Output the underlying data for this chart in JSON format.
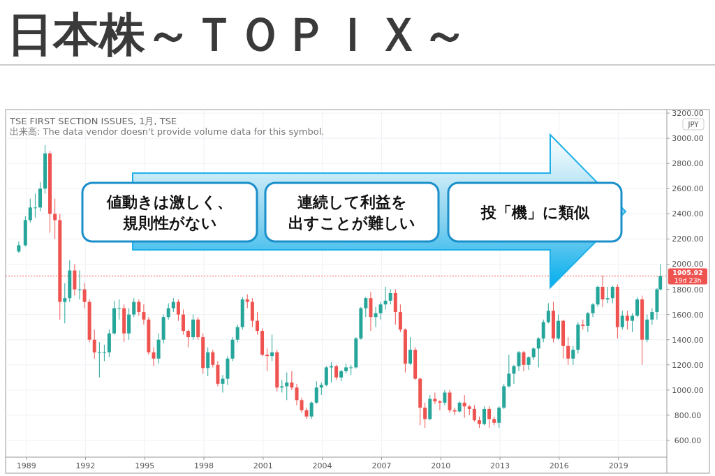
{
  "chart_data": {
    "type": "candlestick",
    "title": "日本株～ＴＯＰＩＸ～",
    "annotations": [
      "TSE FIRST SECTION ISSUES, 1月, TSE",
      "出来高: The data vendor doesn't provide volume data for this symbol.",
      "値動きは激しく、",
      "規則性がない",
      "連続して利益を",
      "出すことが難しい",
      "投「機」に類似",
      "JPY",
      "19d 23h"
    ],
    "x": [
      "1988-08",
      "1988-12",
      "1989-03",
      "1989-06",
      "1989-09",
      "1989-12",
      "1990-03",
      "1990-06",
      "1990-09",
      "1990-12",
      "1991-03",
      "1991-06",
      "1991-09",
      "1991-12",
      "1992-03",
      "1992-06",
      "1992-09",
      "1992-12",
      "1993-03",
      "1993-06",
      "1993-09",
      "1993-12",
      "1994-03",
      "1994-06",
      "1994-09",
      "1994-12",
      "1995-03",
      "1995-06",
      "1995-09",
      "1995-12",
      "1996-03",
      "1996-06",
      "1996-09",
      "1996-12",
      "1997-03",
      "1997-06",
      "1997-09",
      "1997-12",
      "1998-03",
      "1998-06",
      "1998-09",
      "1998-12",
      "1999-03",
      "1999-06",
      "1999-09",
      "1999-12",
      "2000-03",
      "2000-06",
      "2000-09",
      "2000-12",
      "2001-03",
      "2001-06",
      "2001-09",
      "2001-12",
      "2002-03",
      "2002-06",
      "2002-09",
      "2002-12",
      "2003-03",
      "2003-06",
      "2003-09",
      "2003-12",
      "2004-03",
      "2004-06",
      "2004-09",
      "2004-12",
      "2005-03",
      "2005-06",
      "2005-09",
      "2005-12",
      "2006-03",
      "2006-06",
      "2006-09",
      "2006-12",
      "2007-03",
      "2007-06",
      "2007-09",
      "2007-12",
      "2008-03",
      "2008-06",
      "2008-09",
      "2008-12",
      "2009-03",
      "2009-06",
      "2009-09",
      "2009-12",
      "2010-03",
      "2010-06",
      "2010-09",
      "2010-12",
      "2011-03",
      "2011-06",
      "2011-09",
      "2011-12",
      "2012-03",
      "2012-06",
      "2012-09",
      "2012-12",
      "2013-03",
      "2013-06",
      "2013-09",
      "2013-12",
      "2014-03",
      "2014-06",
      "2014-09",
      "2014-12",
      "2015-03",
      "2015-06",
      "2015-09",
      "2015-12",
      "2016-03",
      "2016-06",
      "2016-09",
      "2016-12",
      "2017-03",
      "2017-06",
      "2017-09",
      "2017-12",
      "2018-03",
      "2018-06",
      "2018-09",
      "2018-12",
      "2019-03",
      "2019-06",
      "2019-09",
      "2019-12",
      "2020-03",
      "2020-06",
      "2020-09",
      "2020-12",
      "2021-02"
    ],
    "ohlc": [
      [
        2100,
        2180,
        2090,
        2150
      ],
      [
        2150,
        2380,
        2140,
        2350
      ],
      [
        2350,
        2520,
        2330,
        2450
      ],
      [
        2450,
        2560,
        2370,
        2450
      ],
      [
        2450,
        2650,
        2420,
        2600
      ],
      [
        2600,
        2945,
        2560,
        2880
      ],
      [
        2880,
        2900,
        2250,
        2400
      ],
      [
        2400,
        2520,
        2200,
        2350
      ],
      [
        2350,
        2400,
        1560,
        1700
      ],
      [
        1700,
        1850,
        1530,
        1730
      ],
      [
        1730,
        2030,
        1700,
        1950
      ],
      [
        1950,
        2000,
        1750,
        1800
      ],
      [
        1800,
        1950,
        1720,
        1800
      ],
      [
        1800,
        1850,
        1650,
        1700
      ],
      [
        1700,
        1720,
        1380,
        1400
      ],
      [
        1400,
        1480,
        1250,
        1300
      ],
      [
        1300,
        1380,
        1100,
        1300
      ],
      [
        1300,
        1360,
        1230,
        1300
      ],
      [
        1300,
        1480,
        1260,
        1450
      ],
      [
        1450,
        1710,
        1440,
        1650
      ],
      [
        1650,
        1720,
        1560,
        1650
      ],
      [
        1650,
        1680,
        1380,
        1450
      ],
      [
        1450,
        1650,
        1400,
        1600
      ],
      [
        1600,
        1730,
        1580,
        1700
      ],
      [
        1700,
        1720,
        1590,
        1620
      ],
      [
        1620,
        1680,
        1520,
        1560
      ],
      [
        1560,
        1580,
        1280,
        1300
      ],
      [
        1300,
        1340,
        1190,
        1250
      ],
      [
        1250,
        1450,
        1210,
        1400
      ],
      [
        1400,
        1600,
        1370,
        1580
      ],
      [
        1580,
        1690,
        1560,
        1650
      ],
      [
        1650,
        1730,
        1620,
        1700
      ],
      [
        1700,
        1720,
        1550,
        1600
      ],
      [
        1600,
        1640,
        1440,
        1470
      ],
      [
        1470,
        1480,
        1340,
        1420
      ],
      [
        1420,
        1600,
        1400,
        1560
      ],
      [
        1560,
        1580,
        1400,
        1420
      ],
      [
        1420,
        1450,
        1130,
        1175
      ],
      [
        1175,
        1340,
        1110,
        1300
      ],
      [
        1300,
        1320,
        1180,
        1200
      ],
      [
        1200,
        1230,
        1030,
        1050
      ],
      [
        1050,
        1120,
        980,
        1090
      ],
      [
        1090,
        1270,
        1040,
        1250
      ],
      [
        1250,
        1420,
        1230,
        1400
      ],
      [
        1400,
        1520,
        1380,
        1500
      ],
      [
        1500,
        1740,
        1480,
        1720
      ],
      [
        1720,
        1760,
        1650,
        1700
      ],
      [
        1700,
        1730,
        1500,
        1550
      ],
      [
        1550,
        1620,
        1440,
        1470
      ],
      [
        1470,
        1490,
        1270,
        1280
      ],
      [
        1280,
        1330,
        1150,
        1270
      ],
      [
        1270,
        1440,
        1230,
        1300
      ],
      [
        1300,
        1320,
        990,
        1020
      ],
      [
        1020,
        1080,
        980,
        1030
      ],
      [
        1030,
        1140,
        920,
        1060
      ],
      [
        1060,
        1150,
        1000,
        1020
      ],
      [
        1020,
        1050,
        880,
        920
      ],
      [
        920,
        940,
        820,
        840
      ],
      [
        840,
        860,
        770,
        790
      ],
      [
        790,
        910,
        770,
        900
      ],
      [
        900,
        1070,
        890,
        1020
      ],
      [
        1020,
        1060,
        960,
        1040
      ],
      [
        1040,
        1190,
        1030,
        1180
      ],
      [
        1180,
        1220,
        1060,
        1190
      ],
      [
        1190,
        1200,
        1080,
        1100
      ],
      [
        1100,
        1160,
        1070,
        1150
      ],
      [
        1150,
        1210,
        1130,
        1180
      ],
      [
        1180,
        1200,
        1120,
        1180
      ],
      [
        1180,
        1420,
        1170,
        1410
      ],
      [
        1410,
        1660,
        1400,
        1650
      ],
      [
        1650,
        1740,
        1580,
        1730
      ],
      [
        1730,
        1780,
        1470,
        1580
      ],
      [
        1580,
        1660,
        1500,
        1610
      ],
      [
        1610,
        1700,
        1560,
        1680
      ],
      [
        1680,
        1820,
        1640,
        1710
      ],
      [
        1710,
        1800,
        1680,
        1770
      ],
      [
        1770,
        1800,
        1520,
        1620
      ],
      [
        1620,
        1680,
        1460,
        1480
      ],
      [
        1480,
        1490,
        1140,
        1210
      ],
      [
        1210,
        1420,
        1200,
        1320
      ],
      [
        1320,
        1340,
        1080,
        1090
      ],
      [
        1090,
        1100,
        720,
        860
      ],
      [
        860,
        900,
        700,
        770
      ],
      [
        770,
        960,
        760,
        930
      ],
      [
        930,
        980,
        890,
        910
      ],
      [
        910,
        920,
        840,
        900
      ],
      [
        900,
        1000,
        880,
        980
      ],
      [
        980,
        1000,
        820,
        840
      ],
      [
        840,
        860,
        800,
        830
      ],
      [
        830,
        910,
        820,
        900
      ],
      [
        900,
        960,
        780,
        870
      ],
      [
        870,
        880,
        800,
        850
      ],
      [
        850,
        880,
        750,
        760
      ],
      [
        760,
        790,
        700,
        730
      ],
      [
        730,
        870,
        720,
        850
      ],
      [
        850,
        870,
        700,
        770
      ],
      [
        770,
        790,
        720,
        740
      ],
      [
        740,
        870,
        700,
        860
      ],
      [
        860,
        1050,
        850,
        1030
      ],
      [
        1030,
        1280,
        1020,
        1130
      ],
      [
        1130,
        1200,
        1050,
        1190
      ],
      [
        1190,
        1310,
        1150,
        1300
      ],
      [
        1300,
        1310,
        1150,
        1200
      ],
      [
        1200,
        1270,
        1160,
        1260
      ],
      [
        1260,
        1340,
        1240,
        1330
      ],
      [
        1330,
        1420,
        1180,
        1410
      ],
      [
        1410,
        1560,
        1380,
        1540
      ],
      [
        1540,
        1690,
        1530,
        1630
      ],
      [
        1630,
        1700,
        1380,
        1410
      ],
      [
        1410,
        1600,
        1400,
        1550
      ],
      [
        1550,
        1560,
        1250,
        1350
      ],
      [
        1350,
        1420,
        1200,
        1250
      ],
      [
        1250,
        1350,
        1200,
        1320
      ],
      [
        1320,
        1540,
        1290,
        1520
      ],
      [
        1520,
        1560,
        1480,
        1510
      ],
      [
        1510,
        1620,
        1460,
        1610
      ],
      [
        1610,
        1690,
        1580,
        1680
      ],
      [
        1680,
        1830,
        1660,
        1820
      ],
      [
        1820,
        1910,
        1660,
        1720
      ],
      [
        1720,
        1820,
        1690,
        1730
      ],
      [
        1730,
        1830,
        1690,
        1820
      ],
      [
        1820,
        1840,
        1410,
        1500
      ],
      [
        1500,
        1630,
        1480,
        1590
      ],
      [
        1590,
        1630,
        1480,
        1550
      ],
      [
        1550,
        1610,
        1460,
        1590
      ],
      [
        1590,
        1740,
        1580,
        1720
      ],
      [
        1720,
        1750,
        1200,
        1400
      ],
      [
        1400,
        1600,
        1380,
        1560
      ],
      [
        1560,
        1650,
        1520,
        1620
      ],
      [
        1620,
        1810,
        1560,
        1800
      ],
      [
        1800,
        2000,
        1790,
        1905.92
      ]
    ],
    "colors": [
      "#26a69a",
      "#26a69a",
      "#26a69a",
      "#26a69a",
      "#26a69a",
      "#26a69a",
      "#ef5350",
      "#ef5350",
      "#ef5350",
      "#26a69a",
      "#26a69a",
      "#ef5350",
      "#26a69a",
      "#ef5350",
      "#ef5350",
      "#ef5350",
      "#26a69a",
      "#26a69a",
      "#26a69a",
      "#26a69a",
      "#26a69a",
      "#ef5350",
      "#26a69a",
      "#26a69a",
      "#ef5350",
      "#ef5350",
      "#ef5350",
      "#ef5350",
      "#26a69a",
      "#26a69a",
      "#26a69a",
      "#26a69a",
      "#ef5350",
      "#ef5350",
      "#ef5350",
      "#26a69a",
      "#ef5350",
      "#ef5350",
      "#26a69a",
      "#ef5350",
      "#ef5350",
      "#26a69a",
      "#26a69a",
      "#26a69a",
      "#26a69a",
      "#26a69a",
      "#ef5350",
      "#ef5350",
      "#ef5350",
      "#ef5350",
      "#ef5350",
      "#26a69a",
      "#ef5350",
      "#26a69a",
      "#26a69a",
      "#ef5350",
      "#ef5350",
      "#ef5350",
      "#ef5350",
      "#26a69a",
      "#26a69a",
      "#26a69a",
      "#26a69a",
      "#26a69a",
      "#ef5350",
      "#26a69a",
      "#26a69a",
      "#26a69a",
      "#26a69a",
      "#26a69a",
      "#26a69a",
      "#ef5350",
      "#26a69a",
      "#26a69a",
      "#26a69a",
      "#26a69a",
      "#ef5350",
      "#ef5350",
      "#ef5350",
      "#26a69a",
      "#ef5350",
      "#ef5350",
      "#ef5350",
      "#26a69a",
      "#ef5350",
      "#ef5350",
      "#26a69a",
      "#ef5350",
      "#ef5350",
      "#26a69a",
      "#ef5350",
      "#ef5350",
      "#ef5350",
      "#ef5350",
      "#26a69a",
      "#ef5350",
      "#ef5350",
      "#26a69a",
      "#26a69a",
      "#26a69a",
      "#26a69a",
      "#26a69a",
      "#ef5350",
      "#26a69a",
      "#26a69a",
      "#26a69a",
      "#26a69a",
      "#26a69a",
      "#ef5350",
      "#26a69a",
      "#ef5350",
      "#ef5350",
      "#26a69a",
      "#26a69a",
      "#ef5350",
      "#26a69a",
      "#26a69a",
      "#26a69a",
      "#ef5350",
      "#26a69a",
      "#26a69a",
      "#ef5350",
      "#26a69a",
      "#ef5350",
      "#26a69a",
      "#26a69a",
      "#ef5350",
      "#26a69a",
      "#26a69a",
      "#26a69a",
      "#26a69a"
    ],
    "xlim": [
      "1987-12",
      "2021-06"
    ],
    "xticks": [
      "1989",
      "1992",
      "1995",
      "1998",
      "2001",
      "2004",
      "2007",
      "2010",
      "2013",
      "2016",
      "2019"
    ],
    "ylim": [
      467,
      3228
    ],
    "yticks": [
      {
        "value": 600,
        "label": "600.00"
      },
      {
        "value": 800,
        "label": "800.00"
      },
      {
        "value": 1000,
        "label": "1000.00"
      },
      {
        "value": 1200,
        "label": "1200.00"
      },
      {
        "value": 1400,
        "label": "1400.00"
      },
      {
        "value": 1600,
        "label": "1600.00"
      },
      {
        "value": 1800,
        "label": "1800.00"
      },
      {
        "value": 2000,
        "label": "2000.00"
      },
      {
        "value": 2200,
        "label": "2200.00"
      },
      {
        "value": 2400,
        "label": "2400.00"
      },
      {
        "value": 2600,
        "label": "2600.00"
      },
      {
        "value": 2800,
        "label": "2800.00"
      },
      {
        "value": 3000,
        "label": "3000.00"
      },
      {
        "value": 3200,
        "label": "3200.00"
      }
    ],
    "grid": true,
    "ref_lines": [
      {
        "axis": "y",
        "value": 1905.92,
        "label": "1905.92",
        "color": "#ef5350",
        "line_style": "dotted"
      }
    ]
  }
}
